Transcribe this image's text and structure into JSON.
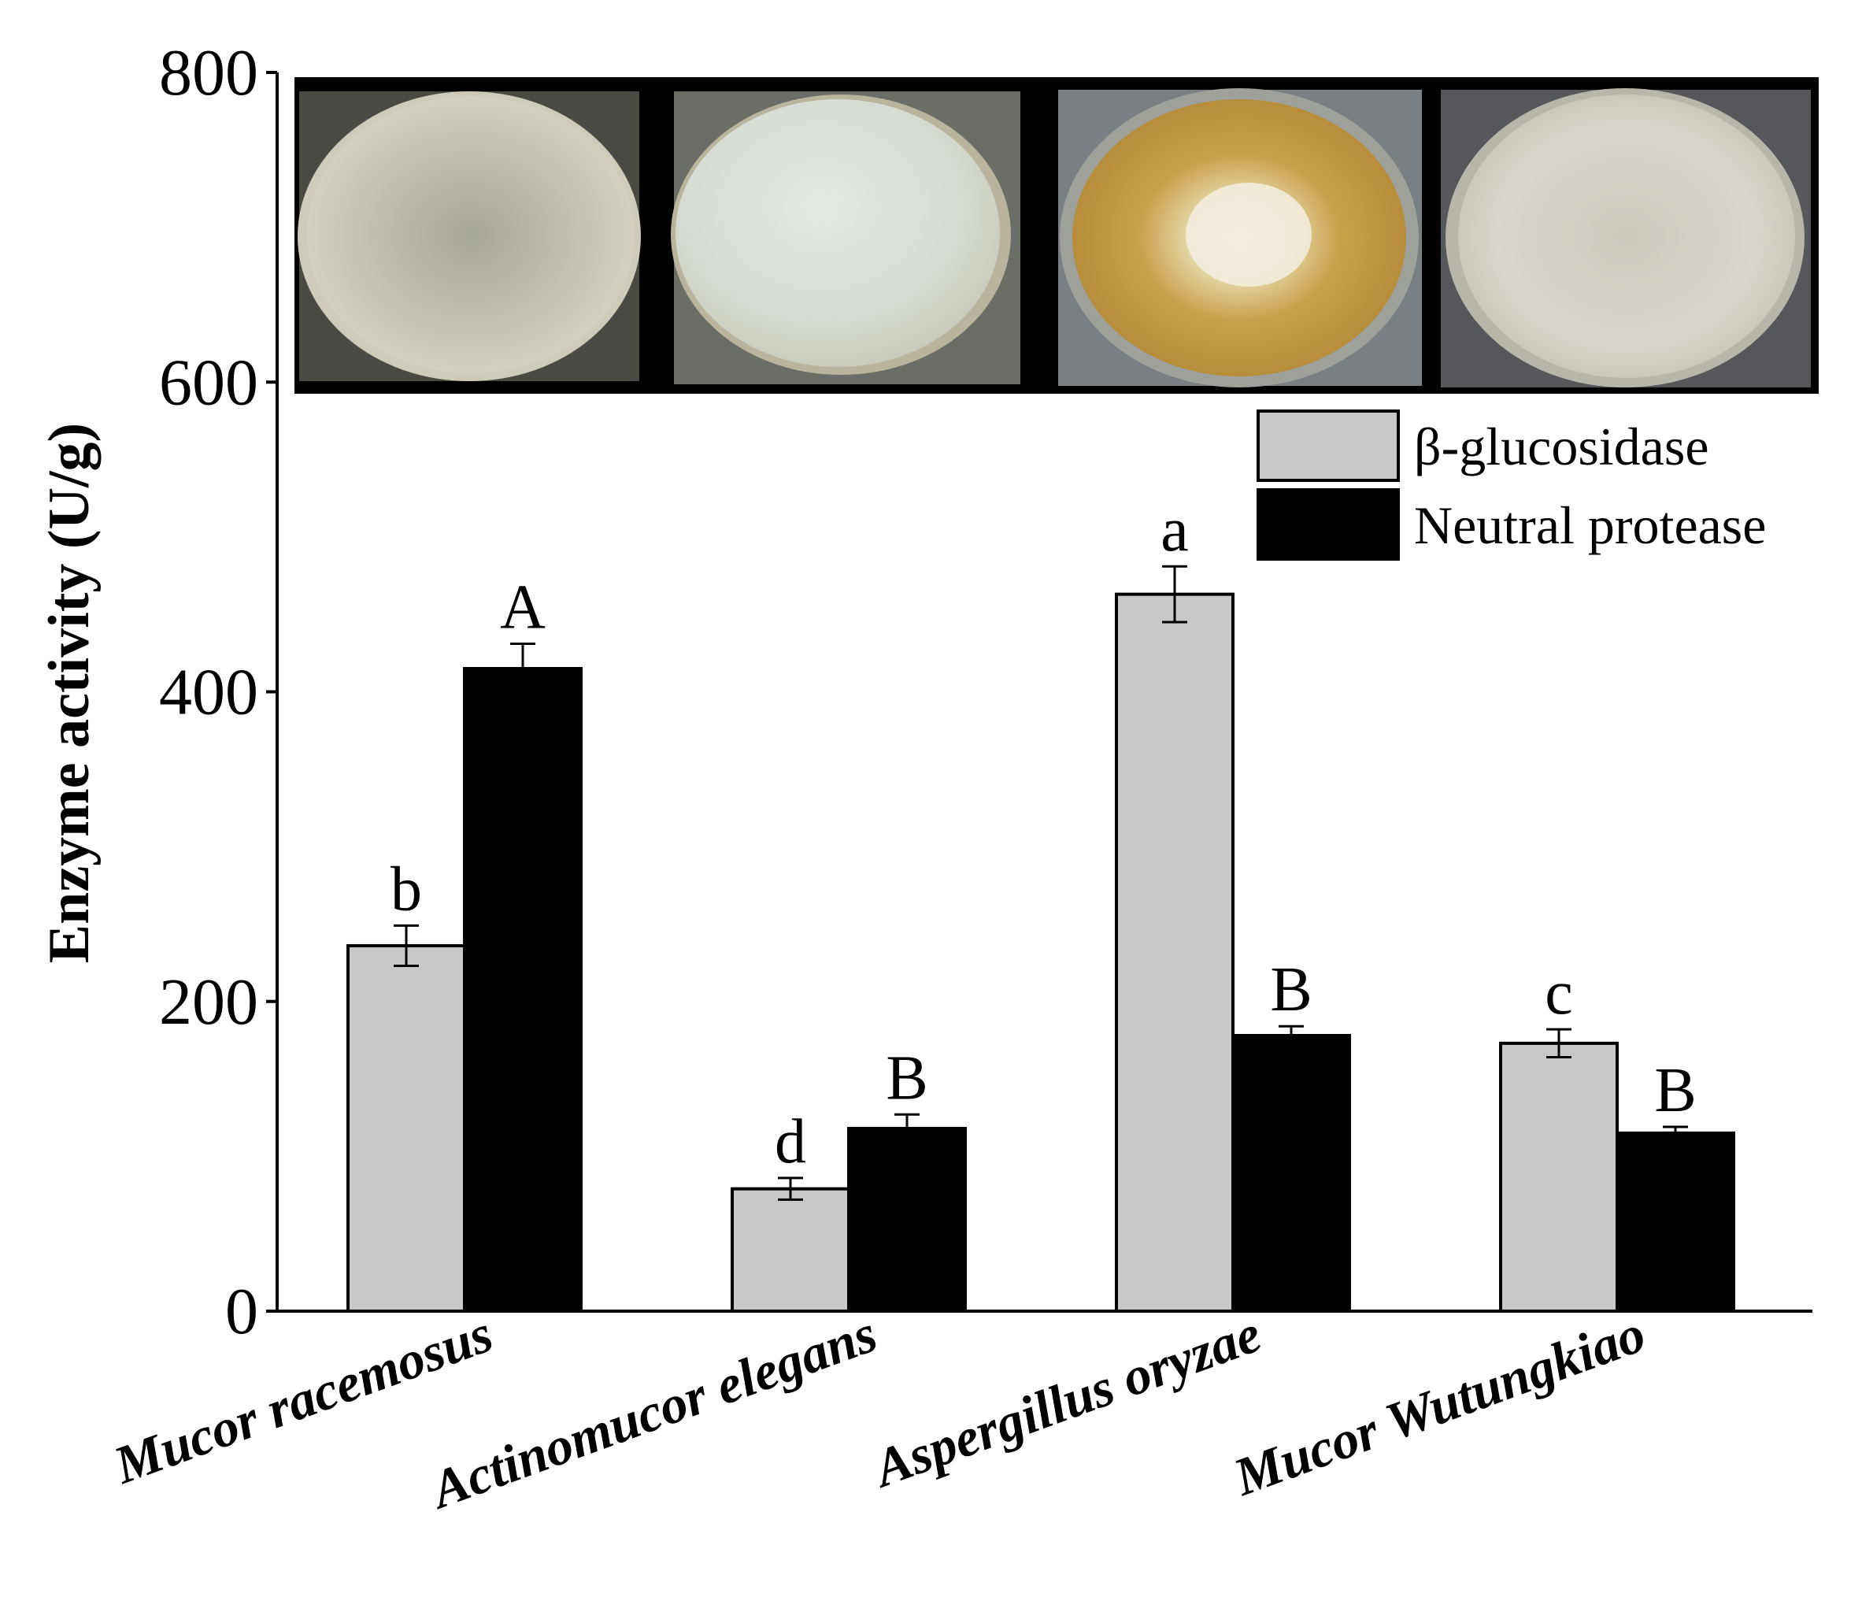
{
  "chart_data": {
    "type": "bar",
    "title": "",
    "xlabel": "",
    "ylabel": "Enzyme activity (U/g)",
    "ylim": [
      0,
      800
    ],
    "yticks": [
      0,
      200,
      400,
      600,
      800
    ],
    "grid": false,
    "legend_position": "right, below photo strip",
    "categories": [
      "Mucor racemosus",
      "Actinomucor elegans",
      "Aspergillus oryzae",
      "Mucor Wutungkiao"
    ],
    "series": [
      {
        "name": "β-glucosidase",
        "color": "#c8c8c8",
        "values": [
          236,
          79,
          463,
          173
        ],
        "errors": [
          13,
          7,
          18,
          9
        ],
        "labels": [
          "b",
          "d",
          "a",
          "c"
        ]
      },
      {
        "name": "Neutral protease",
        "color": "#000000",
        "values": [
          415,
          118,
          178,
          115
        ],
        "errors": [
          16,
          9,
          6,
          4
        ],
        "labels": [
          "A",
          "B",
          "B",
          "B"
        ]
      }
    ],
    "inset_photos": [
      "Mucor racemosus culture plate",
      "Actinomucor elegans culture plate",
      "Aspergillus oryzae culture plate",
      "Mucor Wutungkiao culture plate"
    ]
  }
}
